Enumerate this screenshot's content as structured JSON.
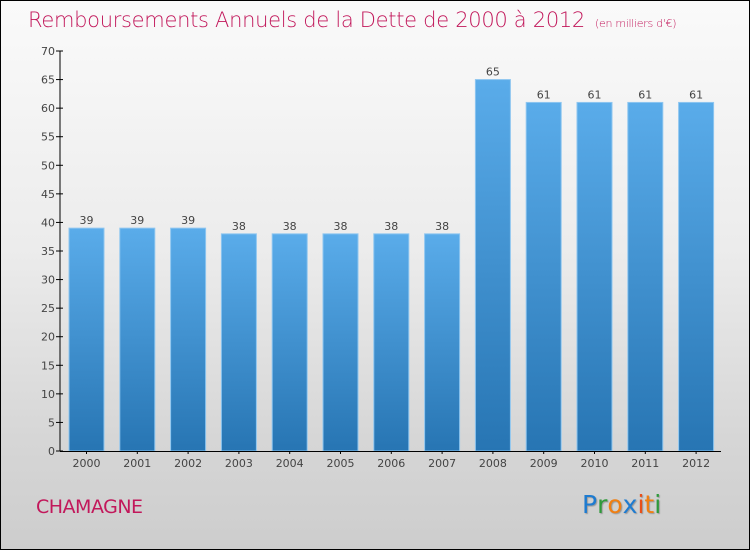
{
  "header": {
    "title": "Remboursements Annuels de la Dette de 2000 à 2012",
    "subtitle": "(en milliers d'€)"
  },
  "footer": {
    "commune": "CHAMAGNE",
    "logo": {
      "text": "Proxiti",
      "letters": [
        {
          "ch": "P",
          "color": "#1e7bd0"
        },
        {
          "ch": "r",
          "color": "#2e9a3a"
        },
        {
          "ch": "o",
          "color": "#f07f12"
        },
        {
          "ch": "x",
          "color": "#1e7bd0"
        },
        {
          "ch": "i",
          "color": "#e8501a"
        },
        {
          "ch": "t",
          "color": "#f07f12"
        },
        {
          "ch": "i",
          "color": "#2e9a3a"
        }
      ]
    }
  },
  "colors": {
    "title": "#c2185b",
    "bar_top": "#5aacea",
    "bar_bottom": "#2775b3",
    "axis": "#000000",
    "label": "#444444"
  },
  "chart_data": {
    "type": "bar",
    "title": "Remboursements Annuels de la Dette de 2000 à 2012",
    "subtitle": "(en milliers d'€)",
    "xlabel": "",
    "ylabel": "",
    "categories": [
      "2000",
      "2001",
      "2002",
      "2003",
      "2004",
      "2005",
      "2006",
      "2007",
      "2008",
      "2009",
      "2010",
      "2011",
      "2012"
    ],
    "values": [
      39,
      39,
      39,
      38,
      38,
      38,
      38,
      38,
      65,
      61,
      61,
      61,
      61
    ],
    "ylim": [
      0,
      70
    ],
    "yticks": [
      0,
      5,
      10,
      15,
      20,
      25,
      30,
      35,
      40,
      45,
      50,
      55,
      60,
      65,
      70
    ],
    "grid": false,
    "legend": "none",
    "data_labels": true
  }
}
